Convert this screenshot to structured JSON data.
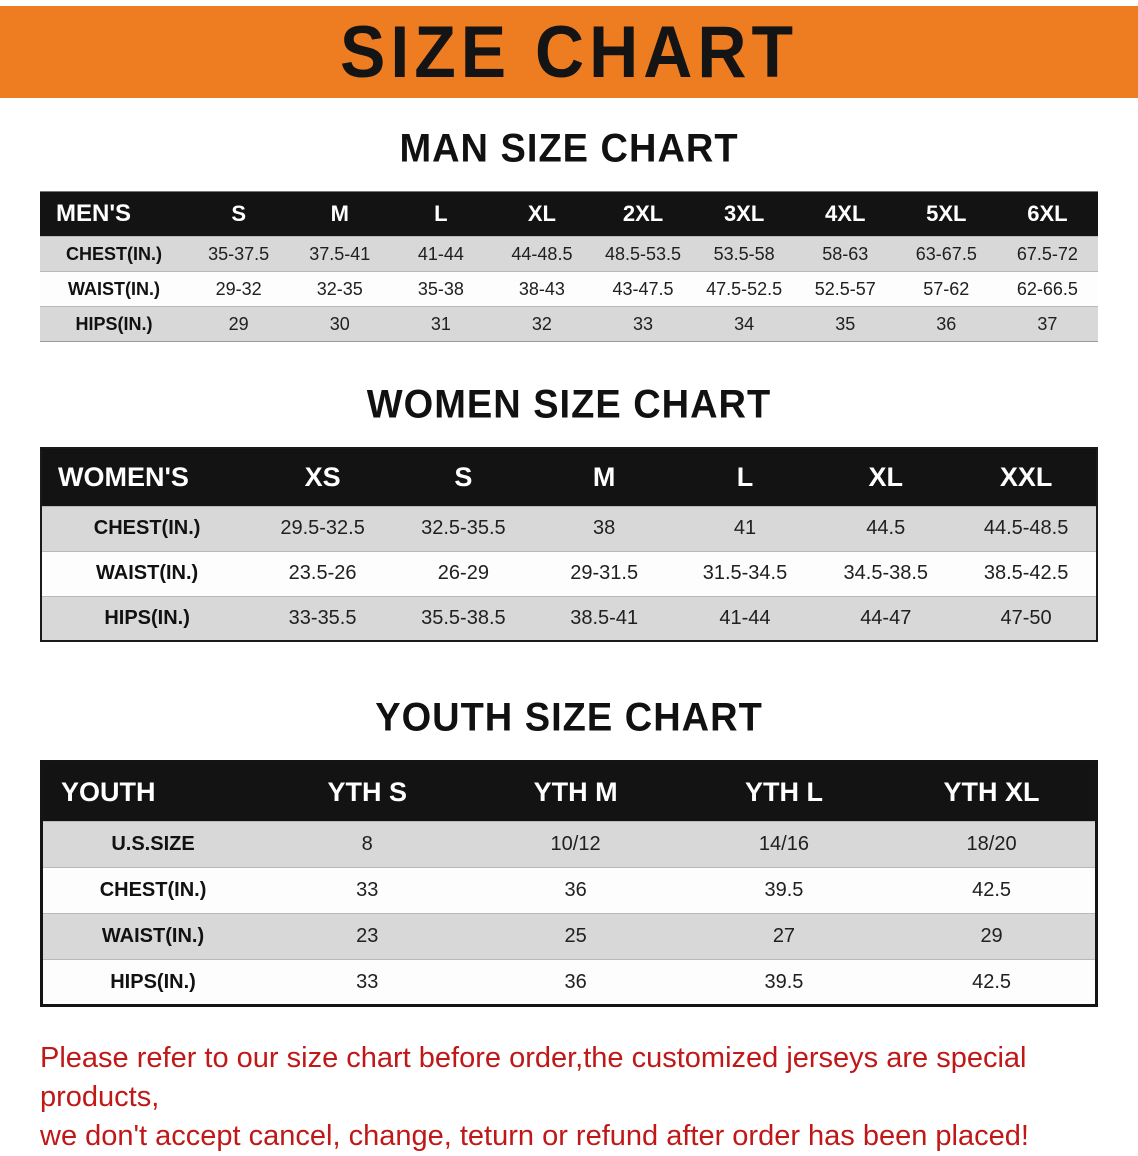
{
  "banner": {
    "title": "SIZE CHART",
    "background_color": "#ee7d22",
    "text_color": "#141414"
  },
  "sections": {
    "men": {
      "heading": "MAN SIZE CHART",
      "table": {
        "header": [
          "MEN'S",
          "S",
          "M",
          "L",
          "XL",
          "2XL",
          "3XL",
          "4XL",
          "5XL",
          "6XL"
        ],
        "rows": [
          [
            "CHEST(IN.)",
            "35-37.5",
            "37.5-41",
            "41-44",
            "44-48.5",
            "48.5-53.5",
            "53.5-58",
            "58-63",
            "63-67.5",
            "67.5-72"
          ],
          [
            "WAIST(IN.)",
            "29-32",
            "32-35",
            "35-38",
            "38-43",
            "43-47.5",
            "47.5-52.5",
            "52.5-57",
            "57-62",
            "62-66.5"
          ],
          [
            "HIPS(IN.)",
            "29",
            "30",
            "31",
            "32",
            "33",
            "34",
            "35",
            "36",
            "37"
          ]
        ]
      }
    },
    "women": {
      "heading": "WOMEN SIZE CHART",
      "table": {
        "header": [
          "WOMEN'S",
          "XS",
          "S",
          "M",
          "L",
          "XL",
          "XXL"
        ],
        "rows": [
          [
            "CHEST(IN.)",
            "29.5-32.5",
            "32.5-35.5",
            "38",
            "41",
            "44.5",
            "44.5-48.5"
          ],
          [
            "WAIST(IN.)",
            "23.5-26",
            "26-29",
            "29-31.5",
            "31.5-34.5",
            "34.5-38.5",
            "38.5-42.5"
          ],
          [
            "HIPS(IN.)",
            "33-35.5",
            "35.5-38.5",
            "38.5-41",
            "41-44",
            "44-47",
            "47-50"
          ]
        ]
      }
    },
    "youth": {
      "heading": "YOUTH SIZE CHART",
      "table": {
        "header": [
          "YOUTH",
          "YTH S",
          "YTH M",
          "YTH L",
          "YTH XL"
        ],
        "rows": [
          [
            "U.S.SIZE",
            "8",
            "10/12",
            "14/16",
            "18/20"
          ],
          [
            "CHEST(IN.)",
            "33",
            "36",
            "39.5",
            "42.5"
          ],
          [
            "WAIST(IN.)",
            "23",
            "25",
            "27",
            "29"
          ],
          [
            "HIPS(IN.)",
            "33",
            "36",
            "39.5",
            "42.5"
          ]
        ]
      }
    }
  },
  "footer": {
    "line1": "Please refer to our size chart before order,the customized jerseys are special products,",
    "line2": "we don't accept cancel, change, teturn or refund after order has been placed!",
    "text_color": "#c01818"
  }
}
